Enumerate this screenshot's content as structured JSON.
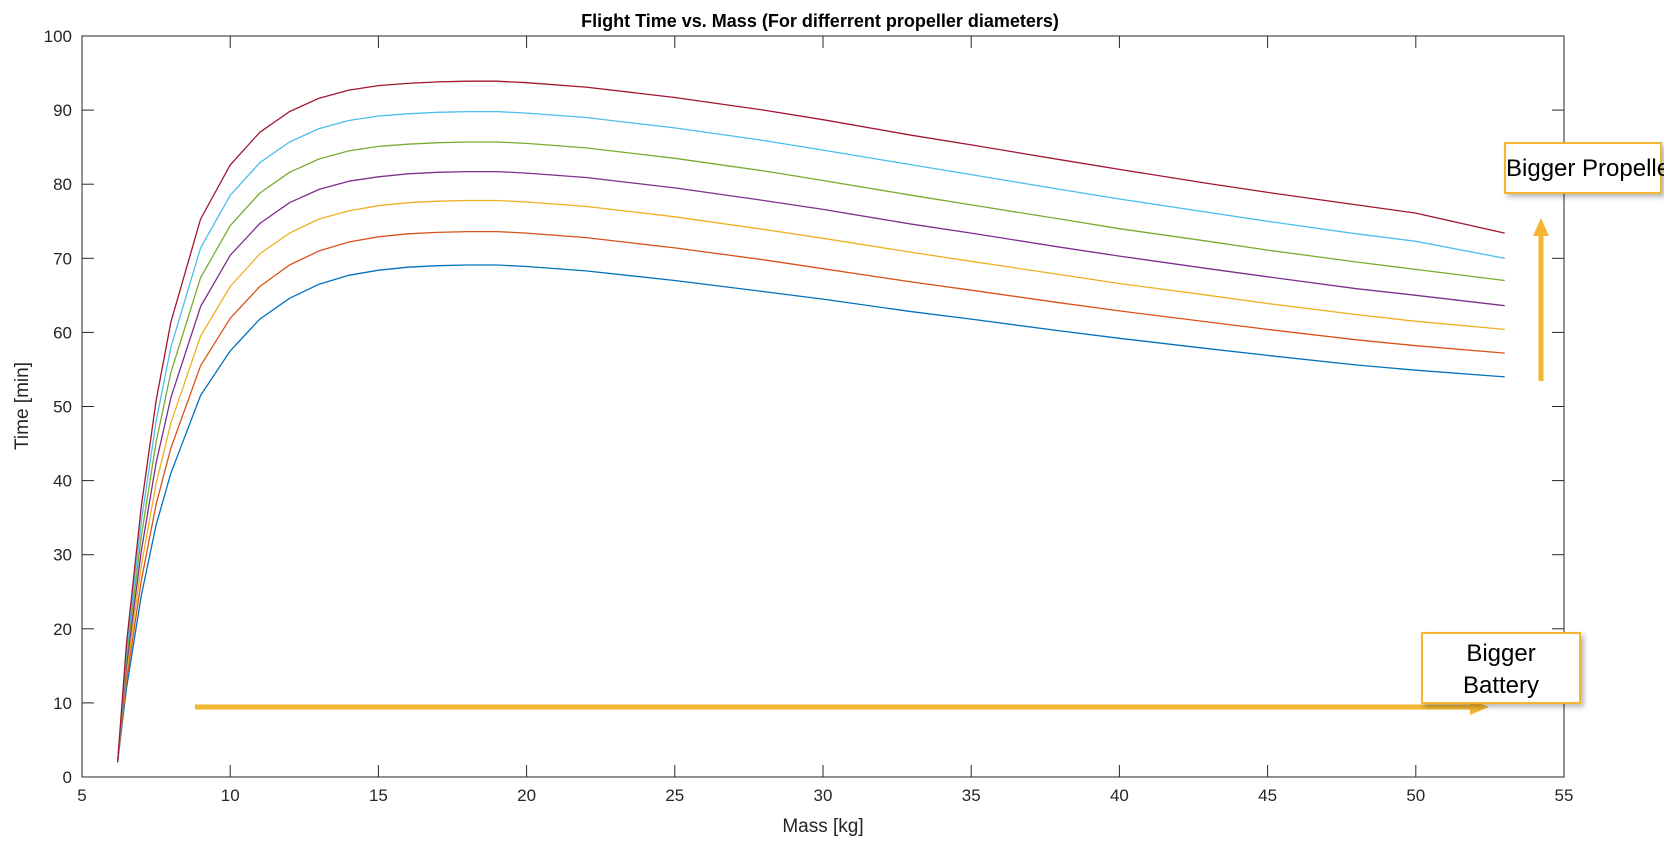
{
  "chart_data": {
    "type": "line",
    "title": "Flight Time vs. Mass (For differrent propeller diameters)",
    "xlabel": "Mass [kg]",
    "ylabel": "Time [min]",
    "xlim": [
      5,
      55
    ],
    "ylim": [
      0,
      100
    ],
    "xticks": [
      5,
      10,
      15,
      20,
      25,
      30,
      35,
      40,
      45,
      50,
      55
    ],
    "yticks": [
      0,
      10,
      20,
      30,
      40,
      50,
      60,
      70,
      80,
      90,
      100
    ],
    "grid": false,
    "legend": "none",
    "x": [
      6.2,
      6.5,
      7,
      7.5,
      8,
      9,
      10,
      11,
      12,
      13,
      14,
      15,
      16,
      17,
      18,
      18.5,
      19,
      20,
      22,
      25,
      28,
      30,
      33,
      35,
      38,
      40,
      43,
      45,
      48,
      50,
      53
    ],
    "series": [
      {
        "color": "#0072bd",
        "values": [
          2,
          12,
          24.5,
          34,
          41,
          51.5,
          57.5,
          61.8,
          64.6,
          66.5,
          67.7,
          68.4,
          68.8,
          69,
          69.1,
          69.1,
          69.1,
          68.9,
          68.3,
          67,
          65.5,
          64.5,
          62.8,
          61.8,
          60.2,
          59.2,
          57.8,
          56.9,
          55.6,
          54.9,
          54
        ]
      },
      {
        "color": "#d95319",
        "values": [
          2,
          13,
          26.5,
          36.8,
          44.4,
          55.5,
          61.9,
          66.2,
          69.1,
          71,
          72.2,
          72.9,
          73.3,
          73.5,
          73.6,
          73.6,
          73.6,
          73.4,
          72.8,
          71.4,
          69.8,
          68.6,
          66.8,
          65.7,
          64,
          62.9,
          61.4,
          60.4,
          59,
          58.2,
          57.2
        ]
      },
      {
        "color": "#edb120",
        "values": [
          2,
          14,
          28.5,
          39.6,
          47.8,
          59.5,
          66.2,
          70.6,
          73.4,
          75.3,
          76.4,
          77.1,
          77.5,
          77.7,
          77.8,
          77.8,
          77.8,
          77.6,
          77,
          75.6,
          73.9,
          72.7,
          70.8,
          69.6,
          67.8,
          66.6,
          65,
          63.9,
          62.4,
          61.5,
          60.4
        ]
      },
      {
        "color": "#7e2f8e",
        "values": [
          2,
          15,
          30.5,
          42.4,
          51.2,
          63.5,
          70.4,
          74.7,
          77.5,
          79.3,
          80.4,
          81,
          81.4,
          81.6,
          81.7,
          81.7,
          81.7,
          81.5,
          80.9,
          79.5,
          77.8,
          76.6,
          74.6,
          73.4,
          71.5,
          70.3,
          68.6,
          67.5,
          65.9,
          65,
          63.6
        ]
      },
      {
        "color": "#77ac30",
        "values": [
          2,
          16,
          32.5,
          45.2,
          54.6,
          67.4,
          74.4,
          78.8,
          81.6,
          83.4,
          84.5,
          85.1,
          85.4,
          85.6,
          85.7,
          85.7,
          85.7,
          85.5,
          84.9,
          83.5,
          81.8,
          80.5,
          78.5,
          77.2,
          75.3,
          74,
          72.3,
          71.1,
          69.5,
          68.5,
          67
        ]
      },
      {
        "color": "#4dbeee",
        "values": [
          2,
          17,
          34.5,
          48,
          58,
          71.4,
          78.5,
          82.9,
          85.7,
          87.5,
          88.6,
          89.2,
          89.5,
          89.7,
          89.8,
          89.8,
          89.8,
          89.6,
          89,
          87.6,
          85.9,
          84.6,
          82.6,
          81.3,
          79.3,
          78,
          76.2,
          75,
          73.3,
          72.3,
          70
        ]
      },
      {
        "color": "#a2142f",
        "values": [
          2,
          18,
          36.5,
          50.8,
          61.4,
          75.3,
          82.6,
          87,
          89.8,
          91.6,
          92.7,
          93.3,
          93.6,
          93.8,
          93.9,
          93.9,
          93.9,
          93.7,
          93.1,
          91.7,
          90,
          88.7,
          86.6,
          85.3,
          83.3,
          82,
          80.1,
          78.9,
          77.2,
          76.1,
          73.4
        ]
      }
    ]
  },
  "annotations": {
    "propeller": "Bigger Propeller",
    "battery_line1": "Bigger",
    "battery_line2": "Battery",
    "arrow_color": "#f2b632"
  }
}
